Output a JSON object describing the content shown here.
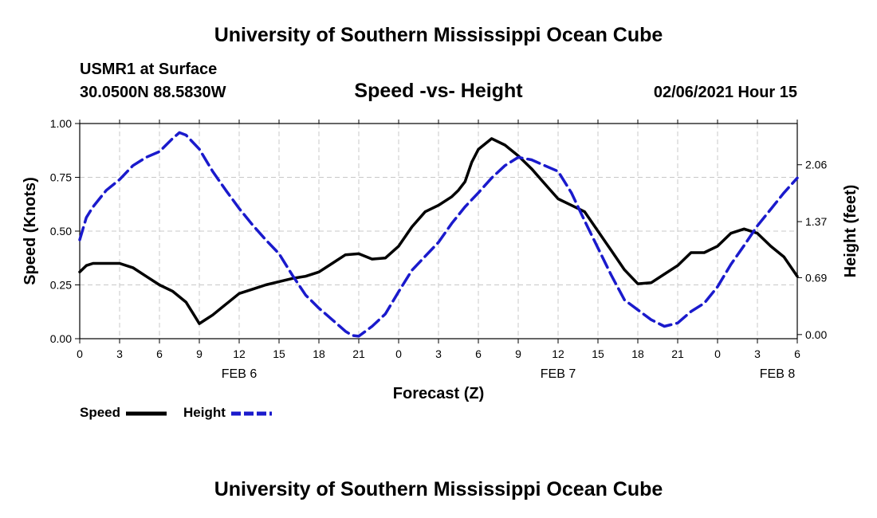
{
  "header": {
    "title": "University of Southern Mississippi Ocean Cube",
    "station": "USMR1 at Surface",
    "coordinates": "30.0500N 88.5830W",
    "datetime": "02/06/2021 Hour 15"
  },
  "footer": {
    "title": "University of Southern Mississippi Ocean Cube"
  },
  "chart_data": {
    "type": "line",
    "title": "Speed -vs- Height",
    "xlabel": "Forecast (Z)",
    "ylabel_left": "Speed (Knots)",
    "ylabel_right": "Height (feet)",
    "grid": true,
    "x_unit": "hours from 00Z Feb 6",
    "xlim": [
      0,
      54
    ],
    "ylim_left": [
      0,
      1.0
    ],
    "ylim_right": [
      -0.05,
      2.56
    ],
    "x_ticks": [
      0,
      3,
      6,
      9,
      12,
      15,
      18,
      21,
      24,
      27,
      30,
      33,
      36,
      39,
      42,
      45,
      48,
      51,
      54
    ],
    "x_tick_labels": [
      "0",
      "3",
      "6",
      "9",
      "12",
      "15",
      "18",
      "21",
      "0",
      "3",
      "6",
      "9",
      "12",
      "15",
      "18",
      "21",
      "0",
      "3",
      "6"
    ],
    "y_left_ticks": [
      0,
      0.25,
      0.5,
      0.75,
      1.0
    ],
    "y_left_tick_labels": [
      "0.00",
      "0.25",
      "0.50",
      "0.75",
      "1.00"
    ],
    "y_right_ticks": [
      0,
      0.69,
      1.37,
      2.06
    ],
    "y_right_tick_labels": [
      "0.00",
      "0.69",
      "1.37",
      "2.06"
    ],
    "day_labels": [
      {
        "x": 12,
        "label": "FEB 6"
      },
      {
        "x": 36,
        "label": "FEB 7"
      },
      {
        "x": 52.5,
        "label": "FEB 8"
      }
    ],
    "series": [
      {
        "name": "Speed",
        "axis": "left",
        "color": "#000000",
        "style": "solid",
        "x": [
          0,
          0.5,
          1,
          2,
          3,
          4,
          5,
          6,
          7,
          8,
          8.5,
          9,
          10,
          11,
          12,
          13,
          14,
          15,
          16,
          17,
          18,
          19,
          20,
          21,
          22,
          23,
          24,
          25,
          26,
          27,
          28,
          28.5,
          29,
          29.5,
          30,
          31,
          32,
          33,
          34,
          35,
          36,
          37,
          38,
          39,
          40,
          41,
          42,
          43,
          44,
          45,
          46,
          47,
          48,
          49,
          50,
          51,
          52,
          53,
          54
        ],
        "values": [
          0.31,
          0.34,
          0.35,
          0.35,
          0.35,
          0.33,
          0.29,
          0.25,
          0.22,
          0.17,
          0.12,
          0.07,
          0.11,
          0.16,
          0.21,
          0.23,
          0.25,
          0.265,
          0.28,
          0.29,
          0.31,
          0.35,
          0.39,
          0.395,
          0.37,
          0.375,
          0.43,
          0.52,
          0.59,
          0.62,
          0.66,
          0.69,
          0.73,
          0.82,
          0.88,
          0.93,
          0.9,
          0.85,
          0.79,
          0.72,
          0.65,
          0.62,
          0.59,
          0.5,
          0.41,
          0.32,
          0.255,
          0.26,
          0.3,
          0.34,
          0.4,
          0.4,
          0.43,
          0.49,
          0.51,
          0.49,
          0.43,
          0.38,
          0.29
        ]
      },
      {
        "name": "Height",
        "axis": "right",
        "color": "#1a1acc",
        "style": "dashed",
        "x": [
          0,
          0.5,
          1,
          2,
          3,
          4,
          5,
          6,
          7,
          7.5,
          8,
          9,
          10,
          11,
          12,
          13,
          14,
          15,
          16,
          17,
          18,
          19,
          20,
          20.5,
          21,
          22,
          23,
          24,
          25,
          26,
          27,
          28,
          29,
          30,
          31,
          32,
          33,
          34,
          35,
          36,
          37,
          38,
          39,
          40,
          41,
          42,
          43,
          44,
          45,
          46,
          47,
          48,
          49,
          50,
          51,
          52,
          53,
          54
        ],
        "values": [
          1.15,
          1.42,
          1.55,
          1.75,
          1.88,
          2.05,
          2.15,
          2.22,
          2.38,
          2.45,
          2.42,
          2.25,
          1.98,
          1.75,
          1.53,
          1.33,
          1.15,
          0.98,
          0.72,
          0.48,
          0.32,
          0.18,
          0.04,
          -0.01,
          -0.02,
          0.1,
          0.25,
          0.52,
          0.78,
          0.95,
          1.12,
          1.35,
          1.55,
          1.72,
          1.9,
          2.05,
          2.15,
          2.12,
          2.05,
          1.98,
          1.72,
          1.38,
          1.05,
          0.72,
          0.42,
          0.3,
          0.18,
          0.1,
          0.14,
          0.28,
          0.38,
          0.58,
          0.85,
          1.08,
          1.32,
          1.52,
          1.72,
          1.9
        ]
      }
    ]
  }
}
